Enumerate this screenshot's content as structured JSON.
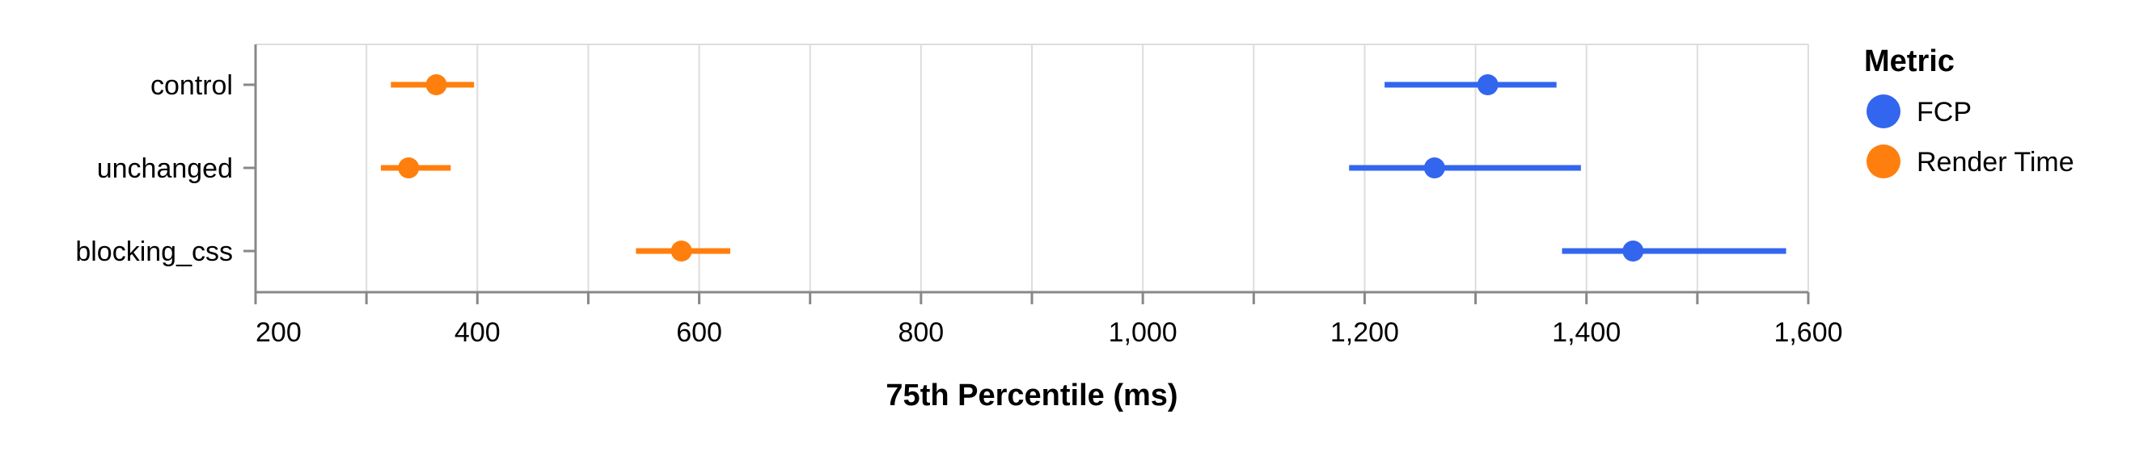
{
  "chart_data": {
    "type": "scatter",
    "subtype": "dot-with-error-bars",
    "title": "",
    "xlabel": "75th Percentile (ms)",
    "ylabel": "",
    "xlim": [
      200,
      1600
    ],
    "x_ticks": [
      200,
      400,
      600,
      800,
      1000,
      1200,
      1400,
      1600
    ],
    "x_tick_labels": [
      "200",
      "400",
      "600",
      "800",
      "1,000",
      "1,200",
      "1,400",
      "1,600"
    ],
    "x_minor_gridlines": [
      300,
      500,
      700,
      900,
      1100,
      1300,
      1500
    ],
    "categories": [
      "control",
      "unchanged",
      "blocking_css"
    ],
    "grid": true,
    "legend": {
      "title": "Metric",
      "position": "right"
    },
    "series": [
      {
        "name": "FCP",
        "color": "#3366ee",
        "points": [
          {
            "category": "control",
            "value": 1311,
            "low": 1218,
            "high": 1373
          },
          {
            "category": "unchanged",
            "value": 1263,
            "low": 1186,
            "high": 1395
          },
          {
            "category": "blocking_css",
            "value": 1442,
            "low": 1378,
            "high": 1580
          }
        ]
      },
      {
        "name": "Render Time",
        "color": "#ff7f0e",
        "points": [
          {
            "category": "control",
            "value": 363,
            "low": 322,
            "high": 397
          },
          {
            "category": "unchanged",
            "value": 338,
            "low": 313,
            "high": 376
          },
          {
            "category": "blocking_css",
            "value": 584,
            "low": 543,
            "high": 628
          }
        ]
      }
    ]
  }
}
